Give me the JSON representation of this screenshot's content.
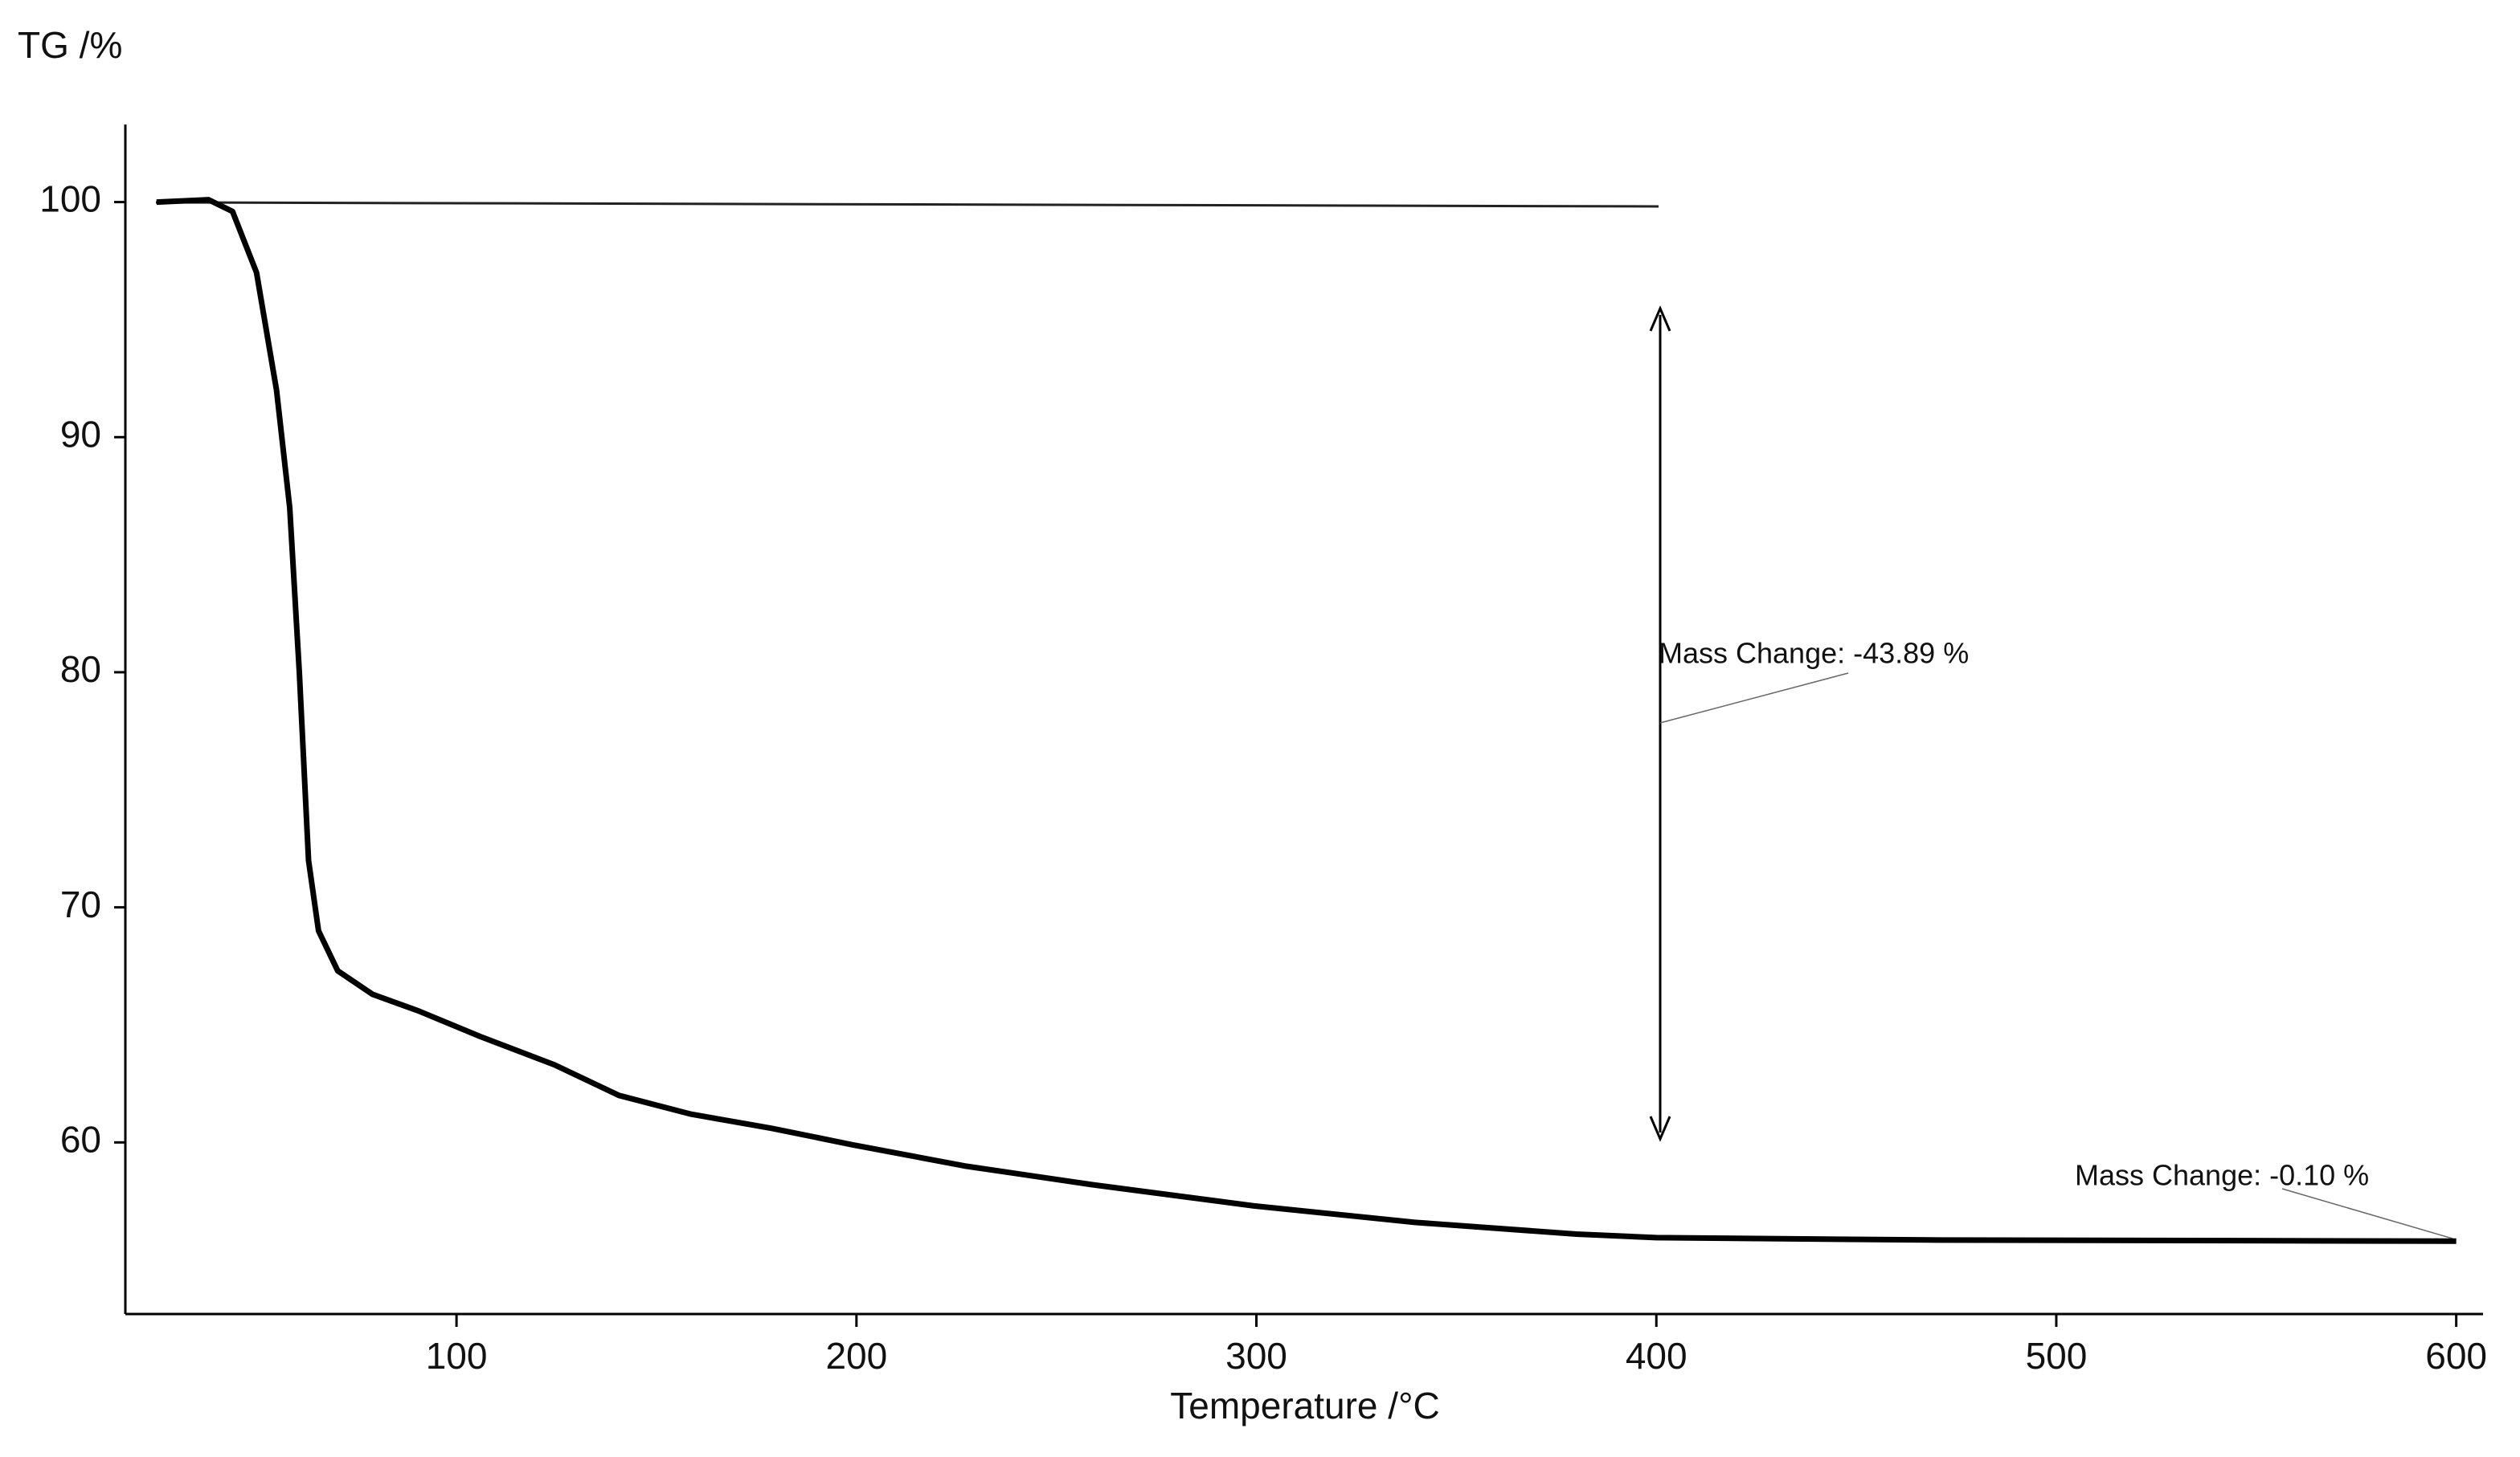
{
  "chart_data": {
    "type": "line",
    "y_label": "TG /%",
    "x_label": "Temperature /°C",
    "x": [
      25,
      38,
      44,
      50,
      55,
      58.3,
      60.7,
      63,
      65.5,
      70.3,
      79,
      90.4,
      106,
      124.5,
      140.6,
      158.7,
      178.8,
      199,
      227,
      259,
      299.4,
      339.6,
      380,
      400,
      468,
      600
    ],
    "series": [
      {
        "name": "TG",
        "color": "#000000",
        "values": [
          100,
          100.1,
          99.6,
          97,
          92,
          87,
          80,
          72,
          69,
          67.3,
          66.3,
          65.6,
          64.5,
          63.3,
          62,
          61.2,
          60.6,
          59.9,
          59.0,
          58.2,
          57.3,
          56.6,
          56.1,
          55.95,
          55.85,
          55.8
        ]
      }
    ],
    "xlim": [
      17.2,
      606.7
    ],
    "xticks": [
      100,
      200,
      300,
      400,
      500,
      600
    ],
    "ylim": [
      52.7,
      103.3
    ],
    "yticks": [
      60,
      70,
      80,
      90,
      100
    ],
    "grid": false,
    "annotations": [
      "Mass Change: -43.89 %",
      "Mass Change: -0.10 %"
    ]
  }
}
